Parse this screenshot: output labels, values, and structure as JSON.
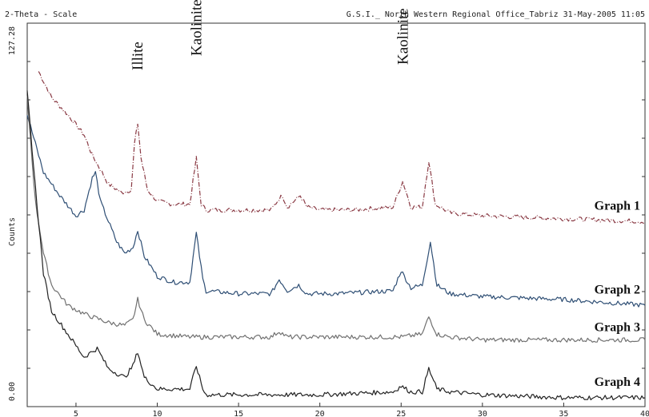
{
  "header": {
    "left": "2-Theta - Scale",
    "right": "G.S.I._ North Western Regional Office_Tabriz 31-May-2005 11:05"
  },
  "chart_data": {
    "type": "line",
    "xlabel": "",
    "ylabel": "Counts",
    "xlim": [
      2,
      40
    ],
    "ylim": [
      0,
      127.28
    ],
    "x_ticks": [
      5,
      10,
      15,
      20,
      25,
      30,
      35,
      40
    ],
    "y_tick_labels": [
      "127.28",
      "0.00"
    ],
    "annotations": [
      {
        "text": "Illite",
        "x": 8.8
      },
      {
        "text": "Kaolinite",
        "x": 12.4
      },
      {
        "text": "Kaolinite",
        "x": 25.1
      }
    ],
    "series": [
      {
        "name": "Graph 1",
        "color": "#8a3a44",
        "dashed": true,
        "points": [
          [
            2.7,
            115
          ],
          [
            3.5,
            106
          ],
          [
            4.5,
            100
          ],
          [
            5.5,
            93
          ],
          [
            6.0,
            86
          ],
          [
            6.4,
            82
          ],
          [
            7.0,
            76
          ],
          [
            7.8,
            73
          ],
          [
            8.4,
            74
          ],
          [
            8.6,
            90
          ],
          [
            8.8,
            97
          ],
          [
            9.0,
            85
          ],
          [
            9.4,
            74
          ],
          [
            10,
            70
          ],
          [
            11,
            69
          ],
          [
            12.0,
            69
          ],
          [
            12.4,
            85
          ],
          [
            12.7,
            69
          ],
          [
            13,
            67
          ],
          [
            15,
            67
          ],
          [
            17,
            67
          ],
          [
            17.5,
            71
          ],
          [
            17.7,
            72
          ],
          [
            18,
            68
          ],
          [
            18.8,
            72
          ],
          [
            19.2,
            68
          ],
          [
            20,
            67
          ],
          [
            22,
            67
          ],
          [
            24.5,
            68
          ],
          [
            25.1,
            77
          ],
          [
            25.6,
            68
          ],
          [
            26.3,
            68
          ],
          [
            26.7,
            84
          ],
          [
            27.1,
            69
          ],
          [
            28,
            66
          ],
          [
            30,
            65
          ],
          [
            35,
            64
          ],
          [
            40,
            63
          ]
        ]
      },
      {
        "name": "Graph 2",
        "color": "#2e4e74",
        "dashed": false,
        "points": [
          [
            2.0,
            100
          ],
          [
            3.0,
            80
          ],
          [
            4.0,
            72
          ],
          [
            5.0,
            65
          ],
          [
            5.5,
            67
          ],
          [
            6.0,
            78
          ],
          [
            6.2,
            80
          ],
          [
            6.5,
            70
          ],
          [
            7.5,
            56
          ],
          [
            8.0,
            52
          ],
          [
            8.5,
            54
          ],
          [
            8.8,
            60
          ],
          [
            9.2,
            51
          ],
          [
            10,
            44
          ],
          [
            11,
            42
          ],
          [
            12.0,
            42
          ],
          [
            12.4,
            59
          ],
          [
            12.8,
            43
          ],
          [
            13,
            39
          ],
          [
            15,
            38
          ],
          [
            17,
            38
          ],
          [
            17.5,
            43
          ],
          [
            18,
            39
          ],
          [
            18.7,
            41
          ],
          [
            19.2,
            38
          ],
          [
            20,
            38
          ],
          [
            21,
            38
          ],
          [
            24.5,
            39
          ],
          [
            25.0,
            46
          ],
          [
            25.6,
            40
          ],
          [
            26.3,
            41
          ],
          [
            26.8,
            56
          ],
          [
            27.2,
            41
          ],
          [
            28,
            38
          ],
          [
            30,
            37
          ],
          [
            35,
            36
          ],
          [
            40,
            34
          ]
        ]
      },
      {
        "name": "Graph 3",
        "color": "#707070",
        "dashed": false,
        "points": [
          [
            2.0,
            106
          ],
          [
            2.5,
            70
          ],
          [
            3.0,
            52
          ],
          [
            3.5,
            41
          ],
          [
            4.5,
            34
          ],
          [
            5.5,
            31
          ],
          [
            7,
            28
          ],
          [
            8,
            27
          ],
          [
            8.5,
            29
          ],
          [
            8.8,
            36
          ],
          [
            9.2,
            29
          ],
          [
            10,
            24
          ],
          [
            12,
            23
          ],
          [
            15,
            23
          ],
          [
            17,
            23
          ],
          [
            17.5,
            25
          ],
          [
            18,
            23
          ],
          [
            20,
            23
          ],
          [
            25,
            23
          ],
          [
            26.3,
            24
          ],
          [
            26.7,
            30
          ],
          [
            27.2,
            24
          ],
          [
            28,
            23
          ],
          [
            30,
            22
          ],
          [
            35,
            22
          ],
          [
            40,
            22
          ]
        ]
      },
      {
        "name": "Graph 4",
        "color": "#222222",
        "dashed": false,
        "points": [
          [
            2.0,
            108
          ],
          [
            2.5,
            75
          ],
          [
            3.0,
            45
          ],
          [
            3.5,
            32
          ],
          [
            4.5,
            24
          ],
          [
            5.5,
            16
          ],
          [
            6.0,
            18
          ],
          [
            6.3,
            19
          ],
          [
            7,
            12
          ],
          [
            8,
            9
          ],
          [
            8.5,
            13
          ],
          [
            8.8,
            18
          ],
          [
            9.2,
            9
          ],
          [
            10,
            5
          ],
          [
            12,
            5
          ],
          [
            12.4,
            13
          ],
          [
            12.8,
            5
          ],
          [
            13,
            3
          ],
          [
            15,
            3
          ],
          [
            20,
            3
          ],
          [
            24.5,
            4
          ],
          [
            25.0,
            6
          ],
          [
            25.6,
            4
          ],
          [
            26.3,
            4
          ],
          [
            26.7,
            12
          ],
          [
            27.2,
            5
          ],
          [
            28,
            4
          ],
          [
            30,
            3
          ],
          [
            35,
            2
          ],
          [
            40,
            2
          ]
        ]
      }
    ],
    "series_label_y": [
      66,
      37,
      24,
      5
    ]
  }
}
